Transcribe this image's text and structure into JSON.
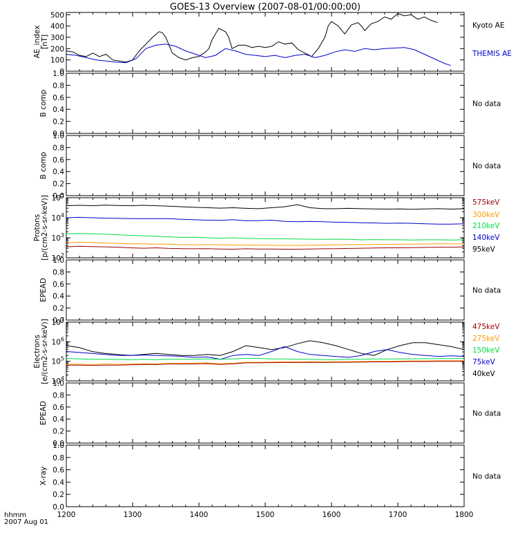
{
  "chart_data": {
    "title": "GOES-13 Overview (2007-08-01/00:00:00)",
    "type": "line",
    "x_label_lines": [
      "hhmm",
      "2007 Aug 01"
    ],
    "x_ticks": [
      "1200",
      "1300",
      "1400",
      "1500",
      "1600",
      "1700",
      "1800"
    ],
    "x_range": [
      1200,
      1800
    ],
    "panels": [
      {
        "id": "ae",
        "ylabel": [
          "AE_index",
          "[nT]"
        ],
        "scale": "linear",
        "ylim": [
          0,
          520
        ],
        "y_ticks": [
          "0",
          "100",
          "200",
          "300",
          "400",
          "500"
        ],
        "series": [
          {
            "name": "Kyoto AE",
            "color": "#000000",
            "x": [
              0,
              10,
              20,
              30,
              40,
              50,
              60,
              70,
              80,
              90,
              100,
              110,
              120,
              130,
              140,
              145,
              150,
              160,
              170,
              180,
              190,
              200,
              210,
              215,
              220,
              230,
              240,
              245,
              250,
              260,
              270,
              280,
              290,
              300,
              310,
              320,
              330,
              340,
              350,
              360,
              370,
              380,
              390,
              395,
              400,
              410,
              420,
              430,
              440,
              445,
              450,
              460,
              470,
              480,
              490,
              500,
              510,
              520,
              530,
              540,
              550,
              560
            ],
            "y": [
              180,
              170,
              140,
              130,
              160,
              130,
              150,
              100,
              90,
              80,
              100,
              180,
              240,
              300,
              350,
              340,
              300,
              160,
              120,
              100,
              120,
              130,
              170,
              200,
              280,
              380,
              350,
              300,
              200,
              230,
              230,
              210,
              220,
              210,
              220,
              260,
              240,
              250,
              190,
              160,
              130,
              200,
              300,
              400,
              440,
              400,
              330,
              410,
              430,
              400,
              360,
              420,
              440,
              480,
              460,
              510,
              490,
              500,
              460,
              480,
              450,
              430
            ],
            "_x_unit": "minutes after 1200"
          },
          {
            "name": "THEMIS AE",
            "color": "#0000cc",
            "x": [
              0,
              15,
              30,
              45,
              60,
              75,
              90,
              105,
              120,
              135,
              150,
              165,
              180,
              195,
              210,
              225,
              240,
              255,
              270,
              285,
              300,
              315,
              330,
              345,
              360,
              375,
              390,
              405,
              420,
              435,
              450,
              465,
              480,
              495,
              510,
              525,
              540,
              555,
              570,
              580
            ],
            "y": [
              150,
              140,
              120,
              100,
              90,
              80,
              75,
              110,
              200,
              230,
              240,
              220,
              180,
              150,
              120,
              140,
              200,
              180,
              150,
              140,
              130,
              140,
              120,
              140,
              150,
              120,
              140,
              170,
              190,
              175,
              200,
              190,
              200,
              205,
              210,
              190,
              150,
              110,
              70,
              50
            ]
          }
        ],
        "data_min_x": 0,
        "data_max_x": 600
      },
      {
        "id": "bcomp1",
        "ylabel": [
          "B comp"
        ],
        "scale": "linear",
        "ylim": [
          0,
          1
        ],
        "y_ticks": [
          "0.0",
          "0.2",
          "0.4",
          "0.6",
          "0.8",
          "1.0"
        ],
        "right_text": "No data"
      },
      {
        "id": "bcomp2",
        "ylabel": [
          "B comp"
        ],
        "scale": "linear",
        "ylim": [
          0,
          1
        ],
        "y_ticks": [
          "0.0",
          "0.2",
          "0.4",
          "0.6",
          "0.8",
          "1.0"
        ],
        "right_text": "No data"
      },
      {
        "id": "protons",
        "ylabel": [
          "Protons",
          "[p/(cm2-s-sr-keV)]"
        ],
        "scale": "log",
        "ylim_log": [
          2,
          5
        ],
        "y_ticks": [
          {
            "base": "10",
            "exp": "2"
          },
          {
            "base": "10",
            "exp": "3"
          },
          {
            "base": "10",
            "exp": "4"
          },
          {
            "base": "10",
            "exp": "5"
          }
        ],
        "series": [
          {
            "name": "95keV",
            "color": "#000000",
            "log_values": [
              4.6,
              4.62,
              4.6,
              4.63,
              4.61,
              4.6,
              4.62,
              4.6,
              4.58,
              4.55,
              4.52,
              4.5,
              4.48,
              4.5,
              4.47,
              4.45,
              4.5,
              4.55,
              4.65,
              4.5,
              4.45,
              4.45,
              4.47,
              4.45,
              4.44,
              4.43,
              4.44,
              4.42,
              4.44,
              4.45,
              4.43,
              4.45
            ]
          },
          {
            "name": "140keV",
            "color": "#0000cc",
            "log_values": [
              4.0,
              4.02,
              4.0,
              3.98,
              3.97,
              3.96,
              3.95,
              3.96,
              3.95,
              3.92,
              3.9,
              3.88,
              3.87,
              3.9,
              3.85,
              3.86,
              3.88,
              3.82,
              3.8,
              3.82,
              3.8,
              3.78,
              3.77,
              3.75,
              3.74,
              3.72,
              3.73,
              3.72,
              3.7,
              3.68,
              3.68,
              3.7
            ]
          },
          {
            "name": "210keV",
            "color": "#00dd44",
            "log_values": [
              3.2,
              3.22,
              3.2,
              3.18,
              3.15,
              3.12,
              3.1,
              3.08,
              3.05,
              3.02,
              3.03,
              3.0,
              2.98,
              3.0,
              2.97,
              2.96,
              2.95,
              2.95,
              2.94,
              2.93,
              2.92,
              2.93,
              2.92,
              2.9,
              2.91,
              2.9,
              2.9,
              2.89,
              2.9,
              2.9,
              2.89,
              2.9
            ]
          },
          {
            "name": "300keV",
            "color": "#ff9900",
            "log_values": [
              2.75,
              2.78,
              2.76,
              2.74,
              2.72,
              2.7,
              2.7,
              2.68,
              2.68,
              2.66,
              2.65,
              2.66,
              2.65,
              2.64,
              2.64,
              2.63,
              2.63,
              2.62,
              2.62,
              2.63,
              2.64,
              2.65,
              2.66,
              2.66,
              2.67,
              2.67,
              2.68,
              2.68,
              2.69,
              2.7,
              2.7,
              2.7
            ]
          },
          {
            "name": "575keV",
            "color": "#990000",
            "log_values": [
              2.55,
              2.58,
              2.56,
              2.55,
              2.53,
              2.5,
              2.48,
              2.5,
              2.47,
              2.46,
              2.45,
              2.46,
              2.44,
              2.43,
              2.45,
              2.44,
              2.44,
              2.43,
              2.43,
              2.44,
              2.45,
              2.46,
              2.47,
              2.48,
              2.49,
              2.5,
              2.5,
              2.51,
              2.52,
              2.53,
              2.53,
              2.55
            ]
          }
        ]
      },
      {
        "id": "epead1",
        "ylabel": [
          "EPEAD"
        ],
        "scale": "linear",
        "ylim": [
          0,
          1
        ],
        "y_ticks": [
          "0.0",
          "0.2",
          "0.4",
          "0.6",
          "0.8",
          "1.0"
        ],
        "right_text": "No data"
      },
      {
        "id": "electrons",
        "ylabel": [
          "Electrons",
          "[e/(cm2-s-sr-keV)]"
        ],
        "scale": "log",
        "ylim_log": [
          4,
          7
        ],
        "y_ticks": [
          {
            "base": "10",
            "exp": "4"
          },
          {
            "base": "10",
            "exp": "5"
          },
          {
            "base": "10",
            "exp": "6"
          },
          {
            "base": "10",
            "exp": "7"
          }
        ],
        "series": [
          {
            "name": "40keV",
            "color": "#000000",
            "log_values": [
              5.8,
              5.7,
              5.5,
              5.4,
              5.35,
              5.3,
              5.35,
              5.4,
              5.35,
              5.3,
              5.3,
              5.35,
              5.3,
              5.5,
              5.8,
              5.7,
              5.6,
              5.7,
              5.9,
              6.05,
              5.95,
              5.8,
              5.6,
              5.4,
              5.3,
              5.6,
              5.8,
              5.95,
              5.95,
              5.85,
              5.75,
              5.6
            ]
          },
          {
            "name": "75keV",
            "color": "#0000cc",
            "log_values": [
              5.5,
              5.45,
              5.4,
              5.35,
              5.3,
              5.3,
              5.32,
              5.3,
              5.28,
              5.25,
              5.2,
              5.22,
              5.1,
              5.3,
              5.35,
              5.3,
              5.5,
              5.75,
              5.5,
              5.35,
              5.3,
              5.25,
              5.2,
              5.3,
              5.5,
              5.6,
              5.45,
              5.35,
              5.3,
              5.25,
              5.28,
              5.25
            ]
          },
          {
            "name": "150keV",
            "color": "#00dd44",
            "log_values": [
              5.15,
              5.12,
              5.1,
              5.1,
              5.1,
              5.08,
              5.1,
              5.08,
              5.1,
              5.1,
              5.1,
              5.12,
              5.1,
              5.12,
              5.15,
              5.15,
              5.12,
              5.12,
              5.1,
              5.1,
              5.08,
              5.08,
              5.1,
              5.1,
              5.12,
              5.12,
              5.12,
              5.13,
              5.13,
              5.14,
              5.14,
              5.15
            ]
          },
          {
            "name": "275keV",
            "color": "#ff9900",
            "log_values": [
              4.85,
              4.85,
              4.84,
              4.86,
              4.85,
              4.86,
              4.88,
              4.87,
              4.9,
              4.9,
              4.9,
              4.92,
              4.88,
              4.9,
              4.95,
              4.95,
              4.96,
              4.97,
              4.97,
              4.98,
              4.97,
              4.98,
              4.98,
              4.99,
              5.0,
              5.0,
              5.01,
              5.02,
              5.02,
              5.03,
              5.03,
              5.03
            ]
          },
          {
            "name": "475keV",
            "color": "#990000",
            "log_values": [
              4.8,
              4.8,
              4.79,
              4.8,
              4.8,
              4.82,
              4.84,
              4.83,
              4.86,
              4.86,
              4.87,
              4.88,
              4.84,
              4.87,
              4.92,
              4.92,
              4.93,
              4.94,
              4.94,
              4.95,
              4.94,
              4.95,
              4.95,
              4.96,
              4.97,
              4.97,
              4.98,
              4.99,
              4.99,
              5.0,
              5.0,
              5.0
            ]
          }
        ]
      },
      {
        "id": "epead2",
        "ylabel": [
          "EPEAD"
        ],
        "scale": "linear",
        "ylim": [
          0,
          1
        ],
        "y_ticks": [
          "0.0",
          "0.2",
          "0.4",
          "0.6",
          "0.8",
          "1.0"
        ],
        "right_text": "No data"
      },
      {
        "id": "xray",
        "ylabel": [
          "X-ray"
        ],
        "scale": "linear",
        "ylim": [
          0,
          1
        ],
        "y_ticks": [
          "0.0",
          "0.2",
          "0.4",
          "0.6",
          "0.8",
          "1.0"
        ],
        "right_text": "No data"
      }
    ]
  }
}
